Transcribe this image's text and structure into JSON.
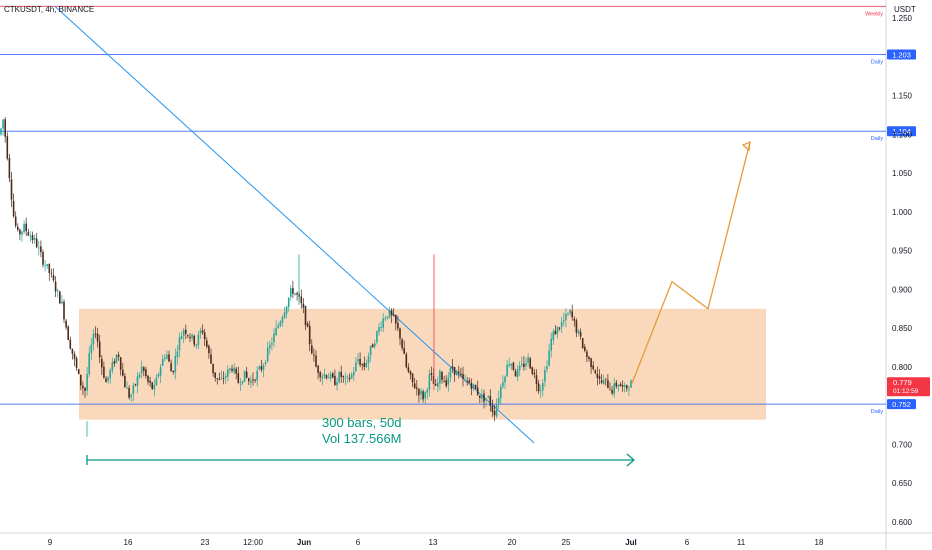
{
  "header": {
    "symbol": "CTKUSDT, 4h, BINANCE",
    "currency": "USDT"
  },
  "colors": {
    "up": "#26a69a",
    "down": "#4a2a1c",
    "range_box": "#f8cba5",
    "level_blue": "#2962ff",
    "level_red": "#f23645",
    "projection": "#e69a3b",
    "measure": "#089981",
    "trendline": "#2196f3"
  },
  "chart_data": {
    "type": "candlestick",
    "title": "CTKUSDT, 4h, BINANCE",
    "ylabel": "USDT",
    "ylim": [
      0.59,
      1.265
    ],
    "y_ticks": [
      "1.250",
      "1.150",
      "1.100",
      "1.050",
      "1.000",
      "0.950",
      "0.900",
      "0.850",
      "0.800",
      "0.700",
      "0.650",
      "0.600"
    ],
    "x_ticks": [
      "9",
      "16",
      "23",
      "12:00",
      "Jun",
      "6",
      "13",
      "20",
      "25",
      "Jul",
      "6",
      "11",
      "18"
    ],
    "levels": [
      {
        "price": 1.265,
        "label": "Weekly",
        "badge": "",
        "color": "red"
      },
      {
        "price": 1.203,
        "label": "Daily",
        "badge": "1.203",
        "color": "blue"
      },
      {
        "price": 1.104,
        "label": "Daily",
        "badge": "1.104",
        "color": "blue"
      },
      {
        "price": 0.752,
        "label": "Daily",
        "badge": "0.752",
        "color": "blue"
      }
    ],
    "range_box": {
      "top": 0.875,
      "bottom": 0.732
    },
    "current_price": {
      "price": 0.779,
      "value": "0.779",
      "countdown": "01:12:59"
    },
    "measure": {
      "line1": "300 bars, 50d",
      "line2": "Vol 137.566M"
    },
    "price_path": [
      [
        0,
        1.1
      ],
      [
        3,
        1.12
      ],
      [
        6,
        1.09
      ],
      [
        10,
        1.04
      ],
      [
        14,
        0.99
      ],
      [
        18,
        0.97
      ],
      [
        24,
        0.98
      ],
      [
        30,
        0.97
      ],
      [
        36,
        0.96
      ],
      [
        42,
        0.94
      ],
      [
        50,
        0.92
      ],
      [
        56,
        0.9
      ],
      [
        62,
        0.88
      ],
      [
        68,
        0.84
      ],
      [
        74,
        0.81
      ],
      [
        80,
        0.78
      ],
      [
        85,
        0.77
      ],
      [
        90,
        0.82
      ],
      [
        96,
        0.85
      ],
      [
        100,
        0.81
      ],
      [
        106,
        0.78
      ],
      [
        112,
        0.8
      ],
      [
        118,
        0.82
      ],
      [
        124,
        0.78
      ],
      [
        130,
        0.76
      ],
      [
        136,
        0.78
      ],
      [
        142,
        0.8
      ],
      [
        148,
        0.78
      ],
      [
        154,
        0.77
      ],
      [
        160,
        0.8
      ],
      [
        166,
        0.82
      ],
      [
        172,
        0.79
      ],
      [
        178,
        0.83
      ],
      [
        184,
        0.85
      ],
      [
        190,
        0.84
      ],
      [
        196,
        0.83
      ],
      [
        202,
        0.85
      ],
      [
        208,
        0.82
      ],
      [
        214,
        0.79
      ],
      [
        220,
        0.78
      ],
      [
        226,
        0.79
      ],
      [
        232,
        0.8
      ],
      [
        238,
        0.78
      ],
      [
        244,
        0.79
      ],
      [
        250,
        0.78
      ],
      [
        256,
        0.79
      ],
      [
        262,
        0.8
      ],
      [
        268,
        0.82
      ],
      [
        274,
        0.84
      ],
      [
        280,
        0.86
      ],
      [
        286,
        0.88
      ],
      [
        292,
        0.9
      ],
      [
        298,
        0.89
      ],
      [
        304,
        0.87
      ],
      [
        310,
        0.83
      ],
      [
        316,
        0.8
      ],
      [
        322,
        0.79
      ],
      [
        328,
        0.79
      ],
      [
        334,
        0.78
      ],
      [
        340,
        0.79
      ],
      [
        346,
        0.78
      ],
      [
        352,
        0.79
      ],
      [
        358,
        0.81
      ],
      [
        364,
        0.8
      ],
      [
        370,
        0.82
      ],
      [
        376,
        0.84
      ],
      [
        382,
        0.86
      ],
      [
        388,
        0.87
      ],
      [
        394,
        0.86
      ],
      [
        400,
        0.84
      ],
      [
        406,
        0.8
      ],
      [
        412,
        0.78
      ],
      [
        418,
        0.77
      ],
      [
        424,
        0.76
      ],
      [
        430,
        0.79
      ],
      [
        436,
        0.77
      ],
      [
        440,
        0.79
      ],
      [
        446,
        0.78
      ],
      [
        452,
        0.8
      ],
      [
        458,
        0.79
      ],
      [
        464,
        0.78
      ],
      [
        470,
        0.78
      ],
      [
        476,
        0.77
      ],
      [
        482,
        0.76
      ],
      [
        488,
        0.76
      ],
      [
        494,
        0.74
      ],
      [
        498,
        0.76
      ],
      [
        504,
        0.79
      ],
      [
        510,
        0.81
      ],
      [
        516,
        0.79
      ],
      [
        522,
        0.8
      ],
      [
        528,
        0.81
      ],
      [
        534,
        0.79
      ],
      [
        540,
        0.77
      ],
      [
        546,
        0.8
      ],
      [
        552,
        0.84
      ],
      [
        558,
        0.85
      ],
      [
        564,
        0.86
      ],
      [
        570,
        0.87
      ],
      [
        576,
        0.85
      ],
      [
        582,
        0.83
      ],
      [
        588,
        0.81
      ],
      [
        594,
        0.8
      ],
      [
        600,
        0.78
      ],
      [
        606,
        0.78
      ],
      [
        612,
        0.77
      ],
      [
        618,
        0.78
      ],
      [
        624,
        0.77
      ],
      [
        630,
        0.779
      ]
    ],
    "projection_path": [
      [
        632,
        0.779
      ],
      [
        672,
        0.91
      ],
      [
        708,
        0.875
      ],
      [
        750,
        1.09
      ]
    ],
    "trendline": [
      [
        55,
        1.265
      ],
      [
        534,
        0.702
      ]
    ]
  }
}
